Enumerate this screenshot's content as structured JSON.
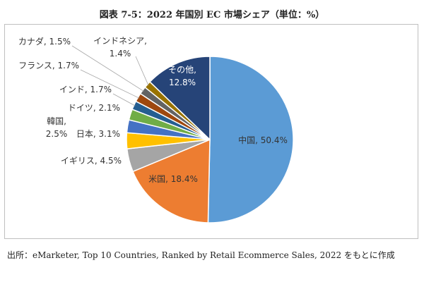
{
  "page": {
    "title": "図表 7-5：2022 年国別 EC 市場シェア（単位：%）",
    "source": "出所：eMarketer, Top 10 Countries, Ranked by Retail Ecommerce Sales, 2022 をもとに作成"
  },
  "chart_data": {
    "type": "pie",
    "title": "図表 7-5：2022 年国別 EC 市場シェア（単位：%）",
    "unit": "%",
    "slices": [
      {
        "label": "中国",
        "value": 50.4,
        "color": "#5b9bd5",
        "label_text": "中国, 50.4%"
      },
      {
        "label": "米国",
        "value": 18.4,
        "color": "#ed7d31",
        "label_text": "米国, 18.4%"
      },
      {
        "label": "イギリス",
        "value": 4.5,
        "color": "#a5a5a5",
        "label_text": "イギリス, 4.5%"
      },
      {
        "label": "日本",
        "value": 3.1,
        "color": "#ffc000",
        "label_text": "日本, 3.1%"
      },
      {
        "label": "韓国",
        "value": 2.5,
        "color": "#4472c4",
        "label_text": "韓国, 2.5%"
      },
      {
        "label": "ドイツ",
        "value": 2.1,
        "color": "#70ad47",
        "label_text": "ドイツ, 2.1%"
      },
      {
        "label": "インド",
        "value": 1.7,
        "color": "#255e91",
        "label_text": "インド, 1.7%"
      },
      {
        "label": "フランス",
        "value": 1.7,
        "color": "#9e480e",
        "label_text": "フランス, 1.7%"
      },
      {
        "label": "カナダ",
        "value": 1.5,
        "color": "#636363",
        "label_text": "カナダ, 1.5%"
      },
      {
        "label": "インドネシア",
        "value": 1.4,
        "color": "#997300",
        "label_text": "インドネシア, 1.4%"
      },
      {
        "label": "その他",
        "value": 12.8,
        "color": "#264478",
        "label_text": "その他, 12.8%"
      }
    ]
  }
}
